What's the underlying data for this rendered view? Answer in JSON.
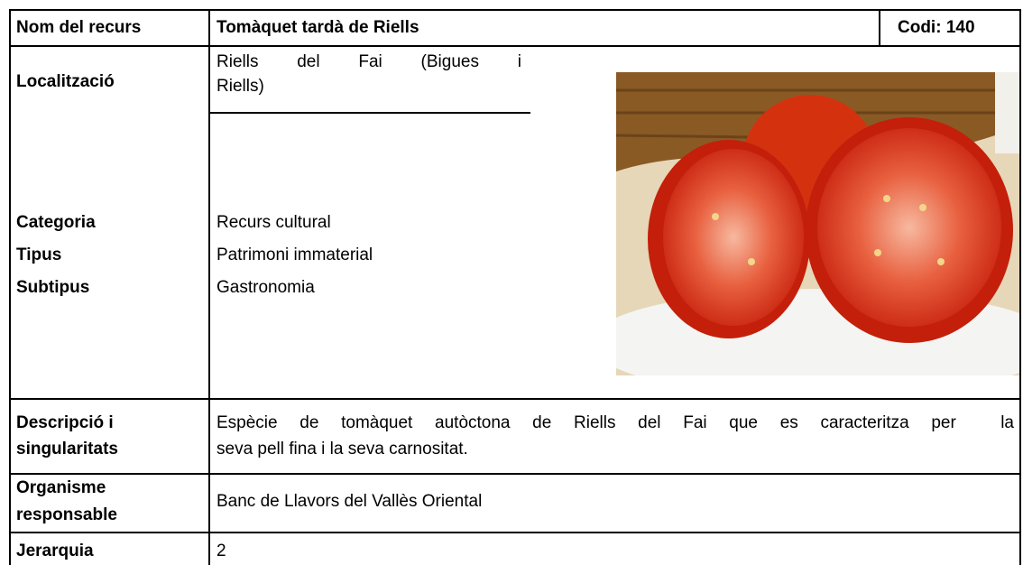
{
  "header": {
    "label": "Nom del recurs",
    "name": "Tomàquet tardà de Riells",
    "code": "Codi: 140"
  },
  "location": {
    "label": "Localització",
    "value_lines": [
      "Riells del Fai (Bigues i",
      "Riells)"
    ]
  },
  "classification": {
    "labels": [
      "Categoria",
      "Tipus",
      "Subtipus"
    ],
    "values": [
      "Recurs cultural",
      "Patrimoni immaterial",
      "Gastronomia"
    ]
  },
  "description": {
    "label_lines": [
      "Descripció i",
      "singularitats"
    ],
    "value_lines": [
      "Espècie de tomàquet autòctona de Riells del Fai que es caracteritza per  la",
      "seva pell fina i la seva carnositat."
    ]
  },
  "organism": {
    "label_lines": [
      "Organisme",
      "responsable"
    ],
    "value": "Banc de Llavors del Vallès Oriental"
  },
  "hierarchy": {
    "label": "Jerarquia",
    "value": 2
  }
}
